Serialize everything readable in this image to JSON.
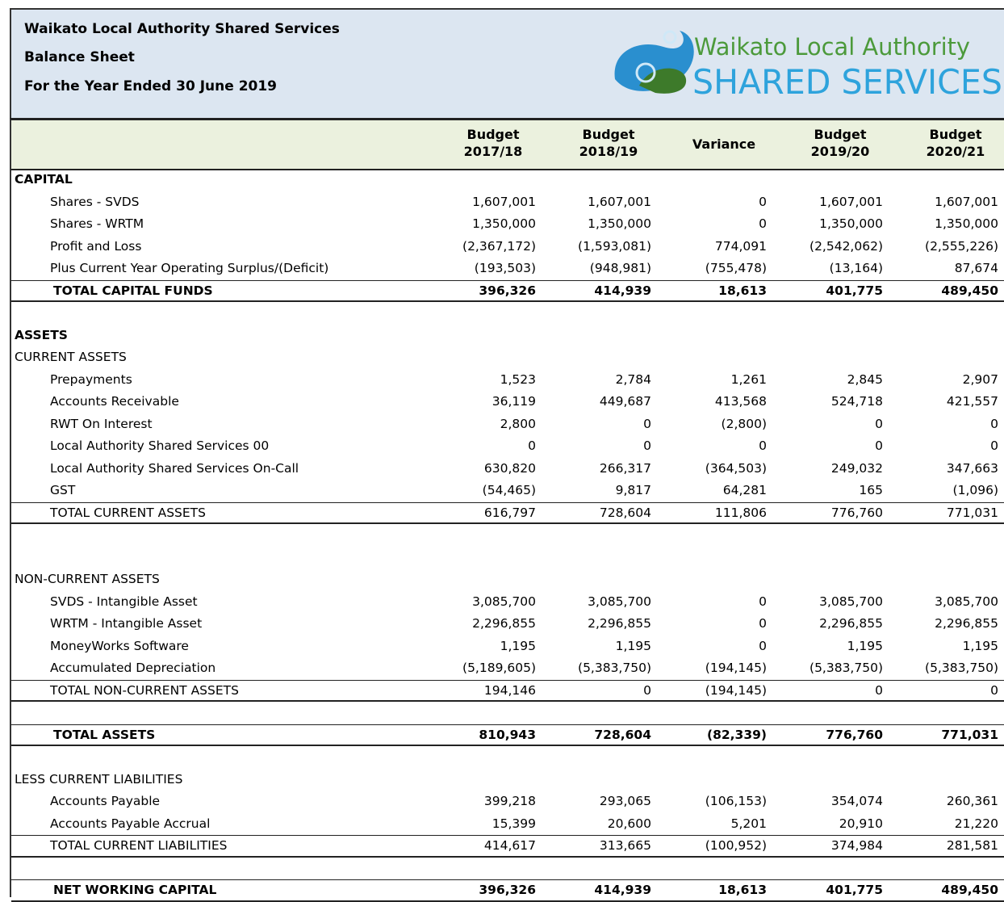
{
  "header": {
    "title": "Waikato Local Authority Shared Services",
    "subtitle": "Balance Sheet",
    "period": "For the Year Ended 30 June 2019"
  },
  "logo": {
    "line1": "Waikato Local Authority",
    "line2": "SHARED SERVICES"
  },
  "table": {
    "columns": [
      [
        "Budget",
        "2017/18"
      ],
      [
        "Budget",
        "2018/19"
      ],
      [
        "Variance"
      ],
      [
        "Budget",
        "2019/20"
      ],
      [
        "Budget",
        "2020/21"
      ]
    ],
    "rows": [
      {
        "kind": "heading",
        "label": "CAPITAL"
      },
      {
        "kind": "item",
        "label": "Shares - SVDS",
        "values": [
          "1,607,001",
          "1,607,001",
          "0",
          "1,607,001",
          "1,607,001"
        ]
      },
      {
        "kind": "item",
        "label": "Shares - WRTM",
        "values": [
          "1,350,000",
          "1,350,000",
          "0",
          "1,350,000",
          "1,350,000"
        ]
      },
      {
        "kind": "item",
        "label": "Profit and Loss",
        "values": [
          "(2,367,172)",
          "(1,593,081)",
          "774,091",
          "(2,542,062)",
          "(2,555,226)"
        ]
      },
      {
        "kind": "item",
        "label": "Plus Current Year Operating Surplus/(Deficit)",
        "values": [
          "(193,503)",
          "(948,981)",
          "(755,478)",
          "(13,164)",
          "87,674"
        ]
      },
      {
        "kind": "total",
        "label": "TOTAL CAPITAL FUNDS",
        "values": [
          "396,326",
          "414,939",
          "18,613",
          "401,775",
          "489,450"
        ]
      },
      {
        "kind": "blank"
      },
      {
        "kind": "heading",
        "label": "ASSETS"
      },
      {
        "kind": "subheading",
        "label": "CURRENT ASSETS"
      },
      {
        "kind": "item",
        "label": "Prepayments",
        "values": [
          "1,523",
          "2,784",
          "1,261",
          "2,845",
          "2,907"
        ]
      },
      {
        "kind": "item",
        "label": "Accounts Receivable",
        "values": [
          "36,119",
          "449,687",
          "413,568",
          "524,718",
          "421,557"
        ]
      },
      {
        "kind": "item",
        "label": "RWT On Interest",
        "values": [
          "2,800",
          "0",
          "(2,800)",
          "0",
          "0"
        ]
      },
      {
        "kind": "item",
        "label": "Local Authority Shared Services 00",
        "values": [
          "0",
          "0",
          "0",
          "0",
          "0"
        ]
      },
      {
        "kind": "item",
        "label": "Local Authority Shared Services On-Call",
        "values": [
          "630,820",
          "266,317",
          "(364,503)",
          "249,032",
          "347,663"
        ]
      },
      {
        "kind": "item",
        "label": "GST",
        "values": [
          "(54,465)",
          "9,817",
          "64,281",
          "165",
          "(1,096)"
        ]
      },
      {
        "kind": "subtotal",
        "label": "TOTAL CURRENT ASSETS",
        "values": [
          "616,797",
          "728,604",
          "111,806",
          "776,760",
          "771,031"
        ]
      },
      {
        "kind": "blank"
      },
      {
        "kind": "blank"
      },
      {
        "kind": "subheading",
        "label": "NON-CURRENT ASSETS"
      },
      {
        "kind": "item",
        "label": "SVDS - Intangible Asset",
        "values": [
          "3,085,700",
          "3,085,700",
          "0",
          "3,085,700",
          "3,085,700"
        ]
      },
      {
        "kind": "item",
        "label": "WRTM - Intangible Asset",
        "values": [
          "2,296,855",
          "2,296,855",
          "0",
          "2,296,855",
          "2,296,855"
        ]
      },
      {
        "kind": "item",
        "label": "MoneyWorks Software",
        "values": [
          "1,195",
          "1,195",
          "0",
          "1,195",
          "1,195"
        ]
      },
      {
        "kind": "item",
        "label": "Accumulated Depreciation",
        "values": [
          "(5,189,605)",
          "(5,383,750)",
          "(194,145)",
          "(5,383,750)",
          "(5,383,750)"
        ]
      },
      {
        "kind": "subtotal",
        "label": "TOTAL NON-CURRENT ASSETS",
        "values": [
          "194,146",
          "0",
          "(194,145)",
          "0",
          "0"
        ]
      },
      {
        "kind": "blank"
      },
      {
        "kind": "total",
        "label": "TOTAL ASSETS",
        "values": [
          "810,943",
          "728,604",
          "(82,339)",
          "776,760",
          "771,031"
        ]
      },
      {
        "kind": "blank"
      },
      {
        "kind": "subheading",
        "label": "LESS CURRENT LIABILITIES"
      },
      {
        "kind": "item",
        "label": "Accounts Payable",
        "values": [
          "399,218",
          "293,065",
          "(106,153)",
          "354,074",
          "260,361"
        ]
      },
      {
        "kind": "item",
        "label": "Accounts Payable Accrual",
        "values": [
          "15,399",
          "20,600",
          "5,201",
          "20,910",
          "21,220"
        ]
      },
      {
        "kind": "subtotal",
        "label": "TOTAL CURRENT LIABILITIES",
        "values": [
          "414,617",
          "313,665",
          "(100,952)",
          "374,984",
          "281,581"
        ]
      },
      {
        "kind": "blank"
      },
      {
        "kind": "total",
        "label": "NET WORKING CAPITAL",
        "values": [
          "396,326",
          "414,939",
          "18,613",
          "401,775",
          "489,450"
        ]
      }
    ]
  }
}
